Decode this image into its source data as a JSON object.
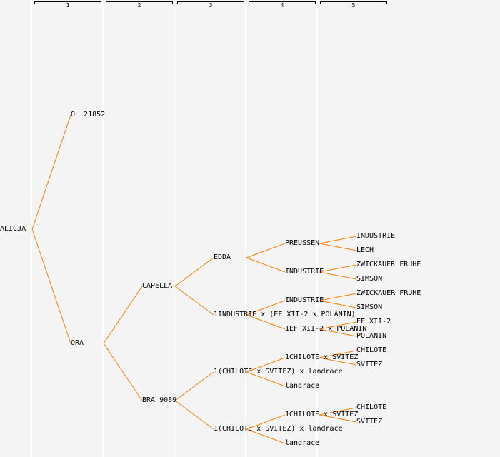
{
  "columns": [
    "1",
    "2",
    "3",
    "4",
    "5"
  ],
  "colors": {
    "line": "#ff8000",
    "background": "#f4f4f4"
  },
  "tree": {
    "name": "ALICJA",
    "children": [
      {
        "name": "OL 21852",
        "children": []
      },
      {
        "name": "ORA",
        "children": [
          {
            "name": "CAPELLA",
            "children": [
              {
                "name": "EDDA",
                "children": [
                  {
                    "name": "PREUSSEN",
                    "children": [
                      {
                        "name": "INDUSTRIE"
                      },
                      {
                        "name": "LECH"
                      }
                    ]
                  },
                  {
                    "name": "INDUSTRIE",
                    "children": [
                      {
                        "name": "ZWICKAUER FRUHE"
                      },
                      {
                        "name": "SIMSON"
                      }
                    ]
                  }
                ]
              },
              {
                "name": "1INDUSTRIE x (EF XII-2 x POLANIN)",
                "children": [
                  {
                    "name": "INDUSTRIE",
                    "children": [
                      {
                        "name": "ZWICKAUER FRUHE"
                      },
                      {
                        "name": "SIMSON"
                      }
                    ]
                  },
                  {
                    "name": "1EF XII-2 x POLANIN",
                    "children": [
                      {
                        "name": "EF XII-2"
                      },
                      {
                        "name": "POLANIN"
                      }
                    ]
                  }
                ]
              }
            ]
          },
          {
            "name": "BRA 9089",
            "children": [
              {
                "name": "1(CHILOTE x SVITEZ) x landrace",
                "children": [
                  {
                    "name": "1CHILOTE x SVITEZ",
                    "children": [
                      {
                        "name": "CHILOTE"
                      },
                      {
                        "name": "SVITEZ"
                      }
                    ]
                  },
                  {
                    "name": "landrace",
                    "children": []
                  }
                ]
              },
              {
                "name": "1(CHILOTE x SVITEZ) x landrace",
                "children": [
                  {
                    "name": "1CHILOTE x SVITEZ",
                    "children": [
                      {
                        "name": "CHILOTE"
                      },
                      {
                        "name": "SVITEZ"
                      }
                    ]
                  },
                  {
                    "name": "landrace",
                    "children": []
                  }
                ]
              }
            ]
          }
        ]
      }
    ]
  }
}
